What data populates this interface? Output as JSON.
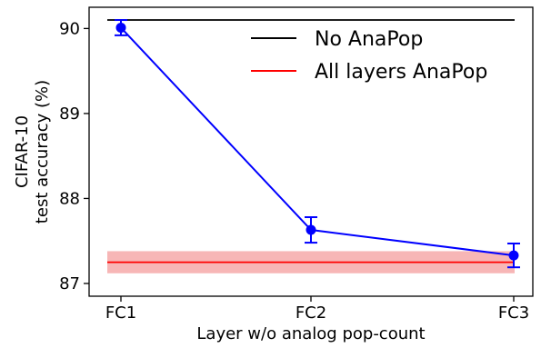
{
  "chart_data": {
    "type": "line",
    "categories": [
      "FC1",
      "FC2",
      "FC3"
    ],
    "xlabel": "Layer w/o analog pop-count",
    "ylabel_lines": [
      "CIFAR-10",
      "test accuracy (%)"
    ],
    "ylim": [
      86.85,
      90.25
    ],
    "yticks": [
      87,
      88,
      89,
      90
    ],
    "series": [
      {
        "values": [
          90.01,
          87.63,
          87.33
        ],
        "errors": [
          0.09,
          0.15,
          0.14
        ],
        "color": "#0000ff",
        "marker": "circle"
      }
    ],
    "reference_lines": [
      {
        "name": "No AnaPop",
        "value": 90.1,
        "color": "#000000"
      },
      {
        "name": "All layers AnaPop",
        "value": 87.25,
        "band": [
          87.12,
          87.38
        ],
        "color": "#ff0000",
        "band_color": "#f7b6b6"
      }
    ],
    "legend_position": "top-right",
    "grid": false
  }
}
